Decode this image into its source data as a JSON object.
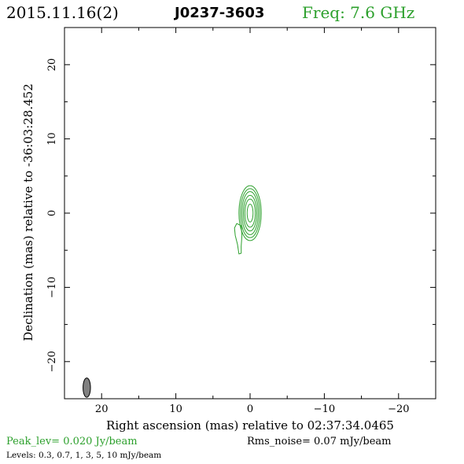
{
  "header": {
    "date": "2015.11.16(2)",
    "source": "J0237-3603",
    "freq": "Freq: 7.6 GHz"
  },
  "colors": {
    "contour": "#2ca02c",
    "freq_text": "#2ca02c",
    "beam_fill": "#808080"
  },
  "footer": {
    "peak": "Peak_lev=  0.020 Jy/beam",
    "rms": "Rms_noise= 0.07 mJy/beam",
    "levels": "Levels: 0.3, 0.7,   1,   3,   5,  10 mJy/beam"
  },
  "chart_data": {
    "type": "contour",
    "xlabel": "Right ascension (mas) relative to 02:37:34.0465",
    "ylabel": "Declination (mas) relative to -36:03:28.452",
    "xlim": [
      25,
      -25
    ],
    "ylim": [
      -25,
      25
    ],
    "x_ticks": [
      "20",
      "10",
      "0",
      "−10",
      "−20"
    ],
    "y_ticks": [
      "20",
      "10",
      "0",
      "−10",
      "−20"
    ],
    "contour_levels_mJy": [
      0.3,
      0.7,
      1,
      3,
      5,
      10
    ],
    "components": [
      {
        "name": "core",
        "x": 0,
        "y": 0,
        "contours": [
          {
            "rx": 1.5,
            "ry": 3.7
          },
          {
            "rx": 1.3,
            "ry": 3.3
          },
          {
            "rx": 1.1,
            "ry": 2.9
          },
          {
            "rx": 0.9,
            "ry": 2.4
          },
          {
            "rx": 0.7,
            "ry": 1.9
          },
          {
            "rx": 0.4,
            "ry": 1.2
          }
        ]
      },
      {
        "name": "jet-feature",
        "outline": [
          [
            1.8,
            -1.4
          ],
          [
            1.2,
            -1.7
          ],
          [
            1.1,
            -3.0
          ],
          [
            1.2,
            -4.5
          ],
          [
            1.2,
            -5.4
          ],
          [
            1.5,
            -5.5
          ],
          [
            1.7,
            -4.2
          ],
          [
            2.0,
            -3.0
          ],
          [
            2.1,
            -2.0
          ]
        ]
      }
    ],
    "beam": {
      "x": 22,
      "y": -23.5,
      "major": 2.6,
      "minor": 1.0
    }
  }
}
